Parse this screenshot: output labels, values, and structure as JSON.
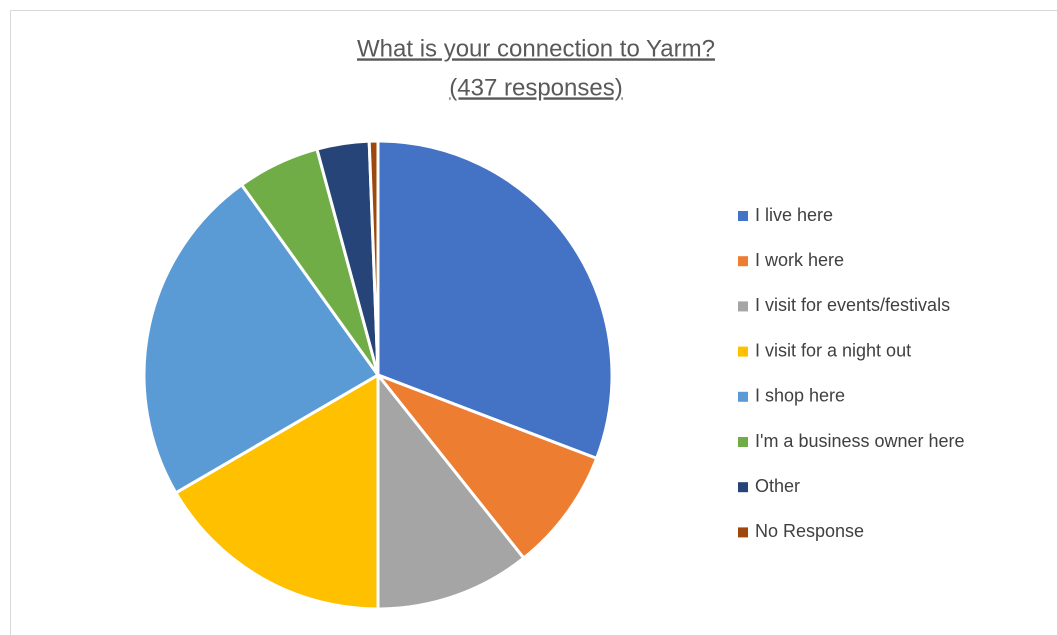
{
  "chart_data": {
    "type": "pie",
    "title": [
      "What is your connection to Yarm?",
      "(437 responses)"
    ],
    "categories": [
      "I live here",
      "I work here",
      "I visit for events/festivals",
      "I visit for a night out",
      "I shop here",
      "I'm a business owner here",
      "Other",
      "No Response"
    ],
    "values": [
      30.8,
      8.5,
      10.7,
      16.6,
      23.5,
      5.7,
      3.6,
      0.6
    ],
    "colors": [
      "#4472c4",
      "#ed7d31",
      "#a5a5a5",
      "#ffc000",
      "#5b9bd5",
      "#70ad47",
      "#264478",
      "#9e480e"
    ],
    "legend": "right"
  }
}
